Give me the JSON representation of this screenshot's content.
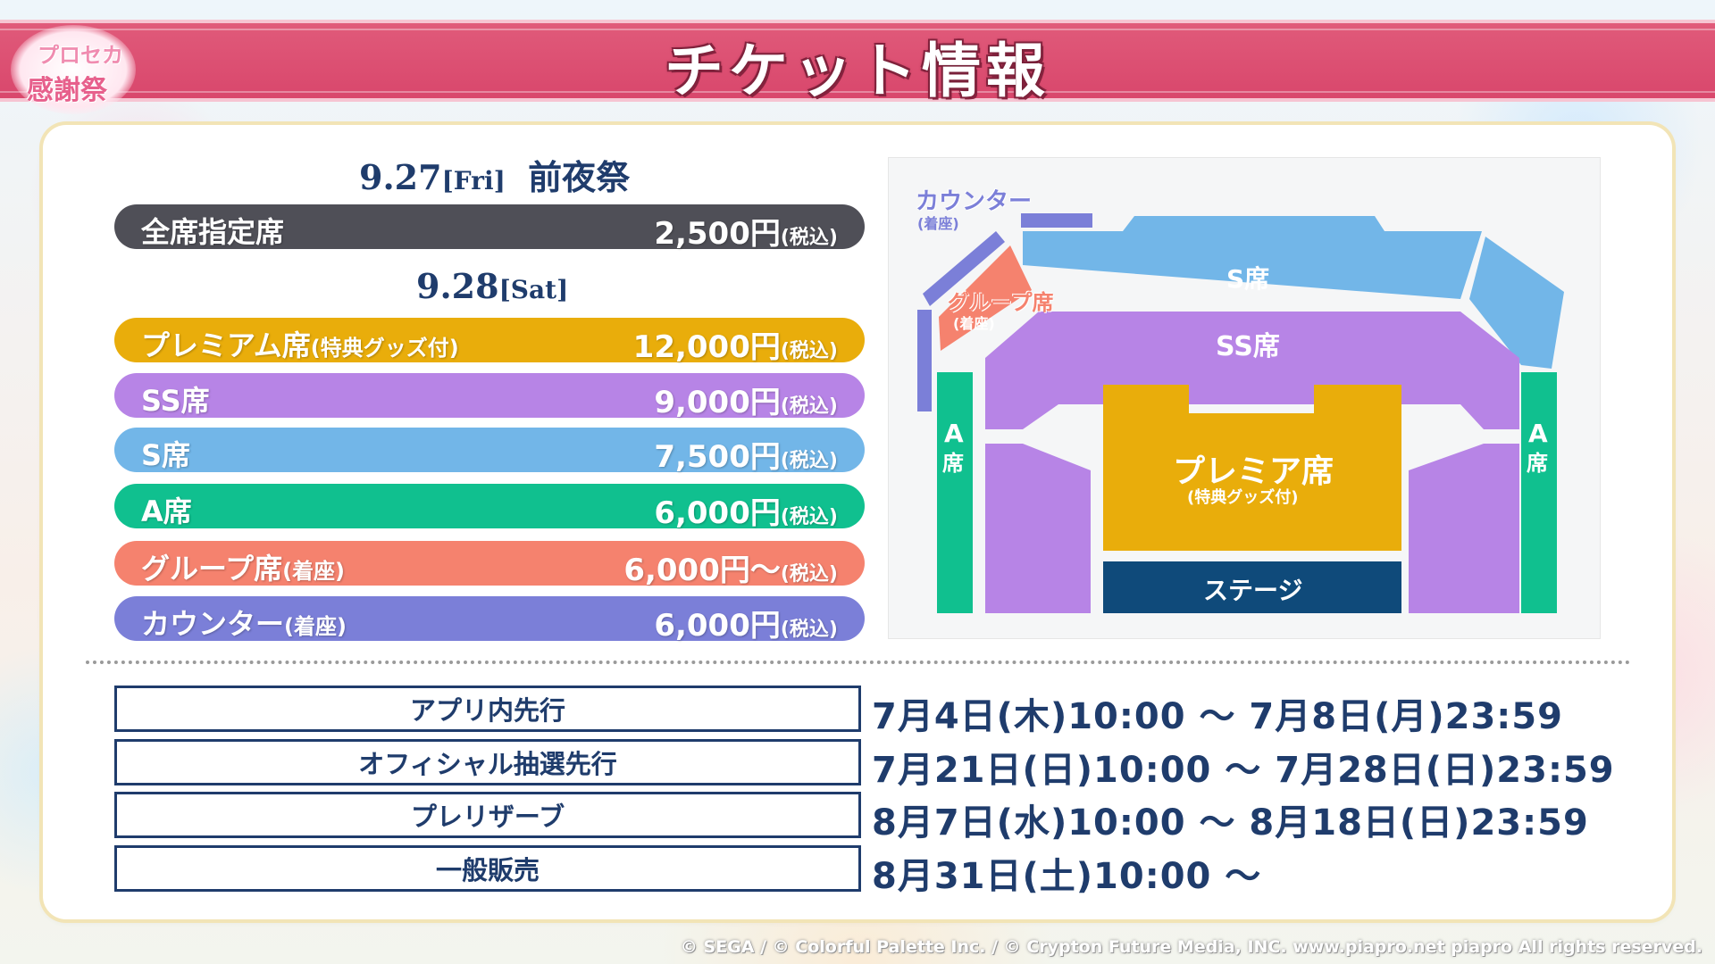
{
  "header": {
    "title": "チケット情報",
    "logo_line1": "プロセカ",
    "logo_line2": "感謝祭",
    "band_color": "#d9476c"
  },
  "day1": {
    "date": "9.27",
    "weekday": "[Fri]",
    "event": "前夜祭",
    "tickets": [
      {
        "name": "全席指定席",
        "name_note": "",
        "price": "2,500円",
        "tax": "(税込)",
        "color": "#4f4f57"
      }
    ]
  },
  "day2": {
    "date": "9.28",
    "weekday": "[Sat]",
    "tickets": [
      {
        "name": "プレミアム席",
        "name_note": "(特典グッズ付)",
        "price": "12,000円",
        "tax": "(税込)",
        "color": "#e9ad0b"
      },
      {
        "name": "SS席",
        "name_note": "",
        "price": "9,000円",
        "tax": "(税込)",
        "color": "#b784e6"
      },
      {
        "name": "S席",
        "name_note": "",
        "price": "7,500円",
        "tax": "(税込)",
        "color": "#72b6e8"
      },
      {
        "name": "A席",
        "name_note": "",
        "price": "6,000円",
        "tax": "(税込)",
        "color": "#10c08f"
      },
      {
        "name": "グループ席",
        "name_note": "(着座)",
        "price": "6,000円～",
        "tax": "(税込)",
        "color": "#f5826e"
      },
      {
        "name": "カウンター",
        "name_note": "(着座)",
        "price": "6,000円",
        "tax": "(税込)",
        "color": "#7b7fd8"
      }
    ]
  },
  "seat_map": {
    "counter_label": "カウンター",
    "counter_note": "(着座)",
    "group_label": "グループ席",
    "group_note": "(着座)",
    "s_label": "S席",
    "ss_label": "SS席",
    "premium_label": "プレミア席",
    "premium_note": "(特典グッズ付)",
    "stage_label": "ステージ",
    "a_label_top": "A",
    "a_label_bottom": "席",
    "colors": {
      "counter": "#7b7fd8",
      "group": "#f5826e",
      "s": "#72b6e8",
      "ss": "#b784e6",
      "premium": "#e9ad0b",
      "stage": "#0f4a7a",
      "a": "#10c08f"
    }
  },
  "schedule": [
    {
      "label": "アプリ内先行",
      "value": "7月4日(木)10:00 ～ 7月8日(月)23:59"
    },
    {
      "label": "オフィシャル抽選先行",
      "value": "7月21日(日)10:00 ～ 7月28日(日)23:59"
    },
    {
      "label": "プレリザーブ",
      "value": "8月7日(水)10:00 ～ 8月18日(日)23:59"
    },
    {
      "label": "一般販売",
      "value": "8月31日(土)10:00 ～"
    }
  ],
  "footer": {
    "copyright": "© SEGA / © Colorful Palette Inc. / © Crypton Future Media, INC. www.piapro.net piapro All rights reserved."
  }
}
